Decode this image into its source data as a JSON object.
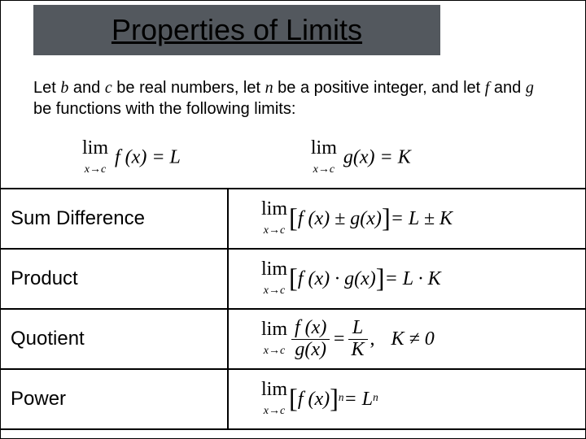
{
  "title": "Properties of Limits",
  "intro": {
    "p1": "Let ",
    "b": "b",
    "p2": " and ",
    "c": "c",
    "p3": " be real numbers, let ",
    "n": "n",
    "p4": " be a positive integer, and let ",
    "f": "f",
    "p5": " and ",
    "g": "g",
    "p6": " be functions with the following limits:"
  },
  "premise": {
    "lim_label": "lim",
    "lim_sub": "x→c",
    "fx_eq_L": " f (x) = L",
    "gx_eq_K": " g(x) = K"
  },
  "rows": {
    "sum_diff": {
      "label": "Sum Difference",
      "body": " f (x) ± g(x)",
      "rhs": " = L ± K"
    },
    "product": {
      "label": "Product",
      "body": " f (x) · g(x)",
      "rhs": " = L · K"
    },
    "quotient": {
      "label": "Quotient",
      "num": "f (x)",
      "den": "g(x)",
      "rnum": "L",
      "rden": "K",
      "cond": "K ≠ 0",
      "comma": ","
    },
    "power": {
      "label": "Power",
      "body": " f (x)",
      "exp": "n",
      "eq": " = L",
      "rexp": "n"
    }
  },
  "brackets": {
    "l": "[",
    "r": "]"
  },
  "colors": {
    "title_bg": "#53585e",
    "text": "#000000",
    "border": "#000000",
    "bg": "#ffffff"
  },
  "fonts": {
    "title_pt": 36,
    "body_pt": 20,
    "label_pt": 24,
    "formula_pt": 24
  }
}
